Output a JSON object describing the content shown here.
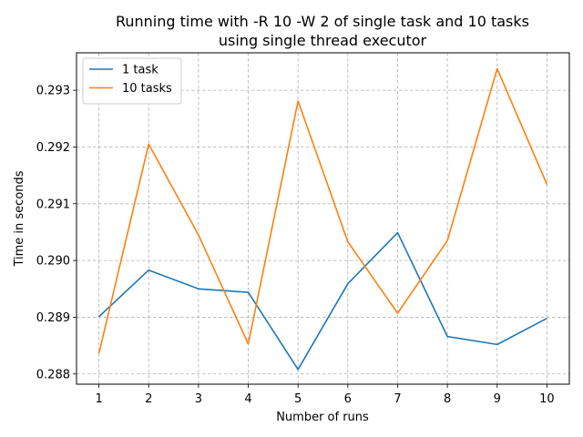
{
  "chart_data": {
    "type": "line",
    "title_line1": "Running time with -R 10 -W 2 of single task and 10 tasks",
    "title_line2": "using single thread executor",
    "xlabel": "Number of runs",
    "ylabel": "Time in seconds",
    "x": [
      1,
      2,
      3,
      4,
      5,
      6,
      7,
      8,
      9,
      10
    ],
    "x_tick_labels": [
      "1",
      "2",
      "3",
      "4",
      "5",
      "6",
      "7",
      "8",
      "9",
      "10"
    ],
    "y_ticks": [
      0.288,
      0.289,
      0.29,
      0.291,
      0.292,
      0.293
    ],
    "y_tick_labels": [
      "0.288",
      "0.289",
      "0.290",
      "0.291",
      "0.292",
      "0.293"
    ],
    "xlim": [
      0.55,
      10.45
    ],
    "ylim": [
      0.28782,
      0.29366
    ],
    "grid": true,
    "legend_position": "top-left",
    "series": [
      {
        "name": "1 task",
        "color": "#1f77b4",
        "values": [
          0.28901,
          0.28983,
          0.2895,
          0.28944,
          0.28808,
          0.28959,
          0.29049,
          0.28866,
          0.28852,
          0.28898
        ]
      },
      {
        "name": "10 tasks",
        "color": "#ff7f0e",
        "values": [
          0.28836,
          0.29205,
          0.29045,
          0.28853,
          0.29281,
          0.29033,
          0.28907,
          0.29035,
          0.29338,
          0.29134
        ]
      }
    ]
  }
}
